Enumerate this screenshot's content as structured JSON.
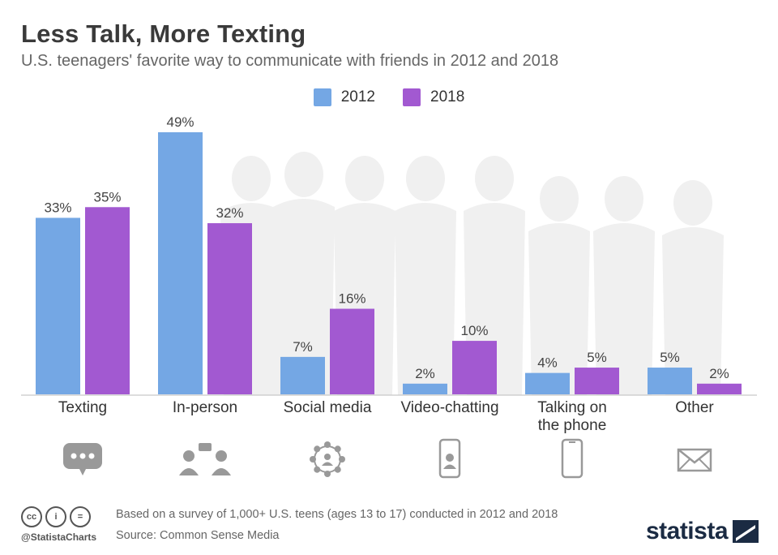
{
  "title": "Less Talk, More Texting",
  "subtitle": "U.S. teenagers' favorite way to communicate with friends in 2012 and 2018",
  "legend": [
    {
      "label": "2012",
      "color": "#74a7e4"
    },
    {
      "label": "2018",
      "color": "#a259d1"
    }
  ],
  "chart_data": {
    "type": "bar",
    "title": "Less Talk, More Texting",
    "subtitle": "U.S. teenagers' favorite way to communicate with friends in 2012 and 2018",
    "xlabel": "",
    "ylabel": "",
    "ylim": [
      0,
      49
    ],
    "grid": false,
    "legend_position": "top-center",
    "categories": [
      "Texting",
      "In-person",
      "Social media",
      "Video-chatting",
      "Talking on the phone",
      "Other"
    ],
    "category_lines": [
      [
        "Texting"
      ],
      [
        "In-person"
      ],
      [
        "Social media"
      ],
      [
        "Video-chatting"
      ],
      [
        "Talking on",
        "the phone"
      ],
      [
        "Other"
      ]
    ],
    "series": [
      {
        "name": "2012",
        "color": "#74a7e4",
        "values": [
          33,
          49,
          7,
          2,
          4,
          5
        ],
        "labels": [
          "33%",
          "49%",
          "7%",
          "2%",
          "4%",
          "5%"
        ]
      },
      {
        "name": "2018",
        "color": "#a259d1",
        "values": [
          35,
          32,
          16,
          10,
          5,
          2
        ],
        "labels": [
          "35%",
          "32%",
          "16%",
          "10%",
          "5%",
          "2%"
        ]
      }
    ],
    "category_icons": [
      "chat-bubble-icon",
      "people-talking-icon",
      "social-network-icon",
      "video-call-phone-icon",
      "smartphone-icon",
      "envelope-icon"
    ]
  },
  "footer": {
    "license_icons": [
      "creative-commons-icon",
      "attribution-icon",
      "no-derivatives-icon"
    ],
    "handle": "@StatistaCharts",
    "note": "Based on a survey of 1,000+ U.S. teens (ages 13 to 17) conducted in 2012 and 2018",
    "source": "Source: Common Sense Media",
    "brand": "statista"
  }
}
